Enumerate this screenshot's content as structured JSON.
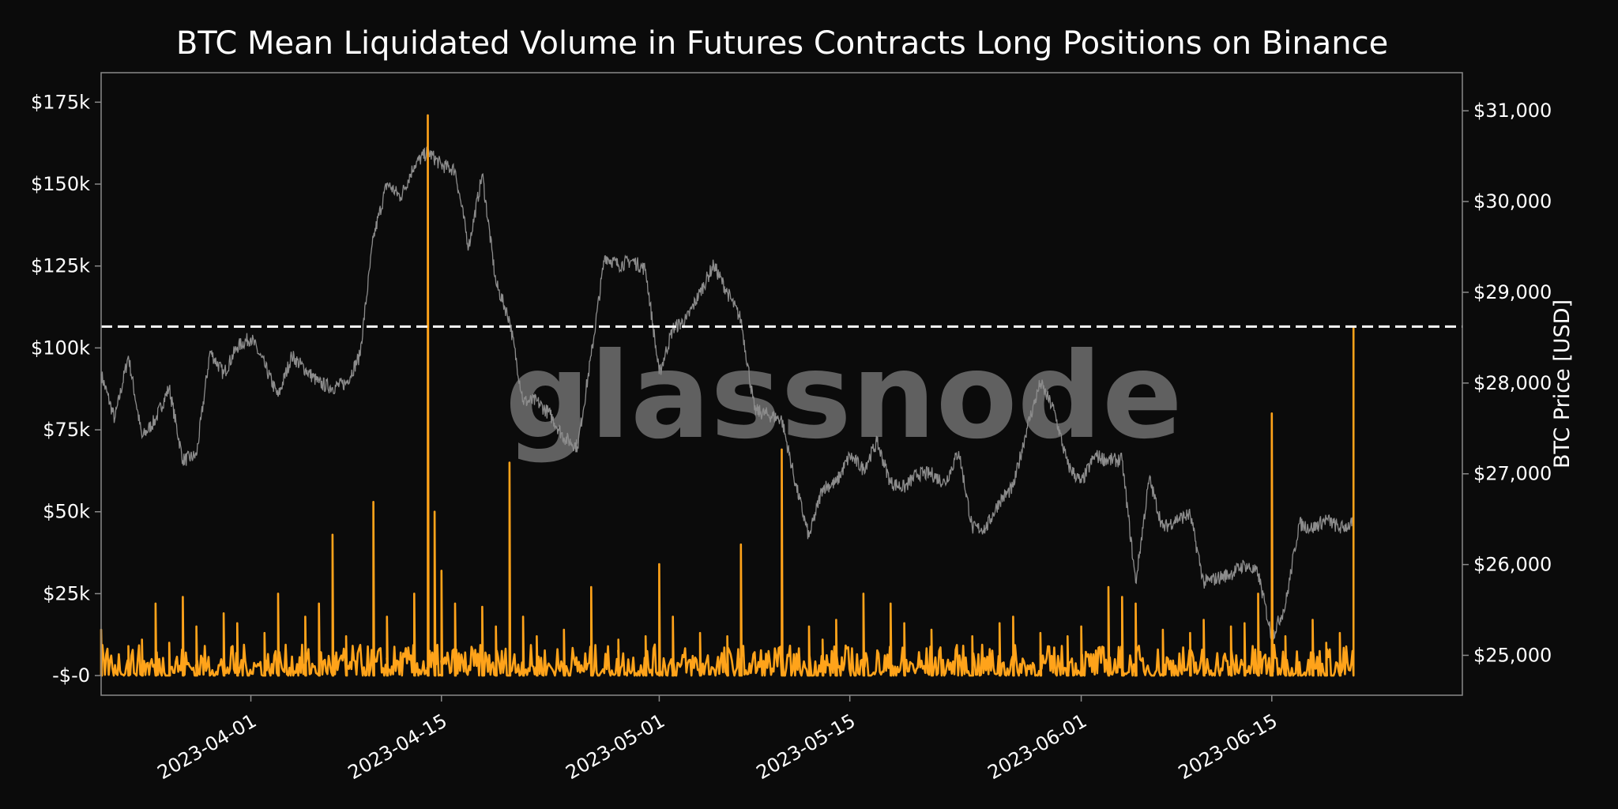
{
  "chart_data": {
    "type": "line",
    "title": "BTC Mean Liquidated Volume in Futures Contracts Long Positions on Binance",
    "xlabel": "",
    "ylabel_left": "",
    "ylabel_right": "BTC Price [USD]",
    "watermark": "glassnode",
    "x_range": [
      "2023-03-21",
      "2023-06-29"
    ],
    "x_ticks": [
      "2023-04-01",
      "2023-04-15",
      "2023-05-01",
      "2023-05-15",
      "2023-06-01",
      "2023-06-15"
    ],
    "y_left": {
      "range": [
        -6000,
        184000
      ],
      "ticks": [
        0,
        25000,
        50000,
        75000,
        100000,
        125000,
        150000,
        175000
      ],
      "tick_labels": [
        "-$-0",
        "$25k",
        "$50k",
        "$75k",
        "$100k",
        "$125k",
        "$150k",
        "$175k"
      ]
    },
    "y_right": {
      "range": [
        24560,
        31420
      ],
      "ticks": [
        25000,
        26000,
        27000,
        28000,
        29000,
        30000,
        31000
      ],
      "tick_labels": [
        "$25,000",
        "$26,000",
        "$27,000",
        "$28,000",
        "$29,000",
        "$30,000",
        "$31,000"
      ]
    },
    "reference_line": {
      "axis": "left",
      "value": 106500,
      "style": "dashed",
      "color": "#ffffff"
    },
    "colors": {
      "volume": "#ffa31a",
      "price": "#8c8c8c",
      "background": "#0b0b0b",
      "axes": "#8a8a8a",
      "text": "#ffffff",
      "watermark": "#6a6a6a"
    },
    "grid": false,
    "series": [
      {
        "axis": "left",
        "color": "#ffa31a",
        "points": [
          [
            "2023-03-21",
            14000
          ],
          [
            "2023-03-23",
            9000
          ],
          [
            "2023-03-24",
            11000
          ],
          [
            "2023-03-25",
            22000
          ],
          [
            "2023-03-26",
            10000
          ],
          [
            "2023-03-27",
            24000
          ],
          [
            "2023-03-28",
            15000
          ],
          [
            "2023-03-30",
            19000
          ],
          [
            "2023-03-31",
            16000
          ],
          [
            "2023-04-02",
            13000
          ],
          [
            "2023-04-03",
            25000
          ],
          [
            "2023-04-05",
            18000
          ],
          [
            "2023-04-06",
            22000
          ],
          [
            "2023-04-07",
            43000
          ],
          [
            "2023-04-08",
            12000
          ],
          [
            "2023-04-10",
            53000
          ],
          [
            "2023-04-11",
            18000
          ],
          [
            "2023-04-13",
            25000
          ],
          [
            "2023-04-14",
            171000
          ],
          [
            "2023-04-14T12:00",
            50000
          ],
          [
            "2023-04-15",
            32000
          ],
          [
            "2023-04-16",
            22000
          ],
          [
            "2023-04-18",
            21000
          ],
          [
            "2023-04-19",
            15000
          ],
          [
            "2023-04-20",
            65000
          ],
          [
            "2023-04-21",
            18000
          ],
          [
            "2023-04-22",
            12000
          ],
          [
            "2023-04-24",
            14000
          ],
          [
            "2023-04-26",
            27000
          ],
          [
            "2023-04-28",
            11000
          ],
          [
            "2023-04-30",
            12000
          ],
          [
            "2023-05-01",
            34000
          ],
          [
            "2023-05-02",
            18000
          ],
          [
            "2023-05-04",
            13000
          ],
          [
            "2023-05-06",
            12000
          ],
          [
            "2023-05-07",
            40000
          ],
          [
            "2023-05-10",
            69000
          ],
          [
            "2023-05-12",
            15000
          ],
          [
            "2023-05-13",
            11000
          ],
          [
            "2023-05-14",
            17000
          ],
          [
            "2023-05-16",
            25000
          ],
          [
            "2023-05-18",
            22000
          ],
          [
            "2023-05-19",
            16000
          ],
          [
            "2023-05-21",
            14000
          ],
          [
            "2023-05-24",
            12000
          ],
          [
            "2023-05-26",
            16000
          ],
          [
            "2023-05-27",
            18000
          ],
          [
            "2023-05-29",
            13000
          ],
          [
            "2023-05-31",
            12000
          ],
          [
            "2023-06-01",
            15000
          ],
          [
            "2023-06-03",
            27000
          ],
          [
            "2023-06-04",
            24000
          ],
          [
            "2023-06-05",
            22000
          ],
          [
            "2023-06-07",
            14000
          ],
          [
            "2023-06-09",
            13000
          ],
          [
            "2023-06-10",
            17000
          ],
          [
            "2023-06-12",
            15000
          ],
          [
            "2023-06-13",
            16000
          ],
          [
            "2023-06-14",
            25000
          ],
          [
            "2023-06-15",
            80000
          ],
          [
            "2023-06-16",
            12000
          ],
          [
            "2023-06-18",
            17000
          ],
          [
            "2023-06-19",
            10000
          ],
          [
            "2023-06-20",
            13000
          ],
          [
            "2023-06-21",
            106500
          ]
        ]
      },
      {
        "axis": "right",
        "color": "#8c8c8c",
        "points": [
          [
            "2023-03-21",
            28100
          ],
          [
            "2023-03-22",
            27600
          ],
          [
            "2023-03-23",
            28300
          ],
          [
            "2023-03-24",
            27400
          ],
          [
            "2023-03-25",
            27600
          ],
          [
            "2023-03-26",
            27950
          ],
          [
            "2023-03-27",
            27150
          ],
          [
            "2023-03-28",
            27200
          ],
          [
            "2023-03-29",
            28350
          ],
          [
            "2023-03-30",
            28100
          ],
          [
            "2023-03-31",
            28400
          ],
          [
            "2023-04-01",
            28500
          ],
          [
            "2023-04-02",
            28200
          ],
          [
            "2023-04-03",
            27850
          ],
          [
            "2023-04-04",
            28300
          ],
          [
            "2023-04-05",
            28150
          ],
          [
            "2023-04-06",
            28000
          ],
          [
            "2023-04-07",
            27950
          ],
          [
            "2023-04-08",
            28000
          ],
          [
            "2023-04-09",
            28300
          ],
          [
            "2023-04-10",
            29600
          ],
          [
            "2023-04-11",
            30200
          ],
          [
            "2023-04-12",
            30050
          ],
          [
            "2023-04-13",
            30400
          ],
          [
            "2023-04-14",
            30550
          ],
          [
            "2023-04-15",
            30400
          ],
          [
            "2023-04-16",
            30350
          ],
          [
            "2023-04-17",
            29500
          ],
          [
            "2023-04-18",
            30300
          ],
          [
            "2023-04-19",
            29100
          ],
          [
            "2023-04-20",
            28700
          ],
          [
            "2023-04-21",
            27800
          ],
          [
            "2023-04-22",
            27800
          ],
          [
            "2023-04-23",
            27650
          ],
          [
            "2023-04-24",
            27400
          ],
          [
            "2023-04-25",
            27300
          ],
          [
            "2023-04-26",
            28300
          ],
          [
            "2023-04-27",
            29400
          ],
          [
            "2023-04-28",
            29300
          ],
          [
            "2023-04-29",
            29350
          ],
          [
            "2023-04-30",
            29250
          ],
          [
            "2023-05-01",
            28100
          ],
          [
            "2023-05-02",
            28600
          ],
          [
            "2023-05-03",
            28700
          ],
          [
            "2023-05-04",
            29000
          ],
          [
            "2023-05-05",
            29300
          ],
          [
            "2023-05-06",
            29000
          ],
          [
            "2023-05-07",
            28700
          ],
          [
            "2023-05-08",
            27700
          ],
          [
            "2023-05-09",
            27650
          ],
          [
            "2023-05-10",
            27600
          ],
          [
            "2023-05-11",
            26900
          ],
          [
            "2023-05-12",
            26300
          ],
          [
            "2023-05-13",
            26850
          ],
          [
            "2023-05-14",
            26900
          ],
          [
            "2023-05-15",
            27200
          ],
          [
            "2023-05-16",
            27050
          ],
          [
            "2023-05-17",
            27350
          ],
          [
            "2023-05-18",
            26900
          ],
          [
            "2023-05-19",
            26850
          ],
          [
            "2023-05-20",
            27000
          ],
          [
            "2023-05-21",
            27000
          ],
          [
            "2023-05-22",
            26900
          ],
          [
            "2023-05-23",
            27250
          ],
          [
            "2023-05-24",
            26400
          ],
          [
            "2023-05-25",
            26400
          ],
          [
            "2023-05-26",
            26700
          ],
          [
            "2023-05-27",
            26850
          ],
          [
            "2023-05-28",
            27500
          ],
          [
            "2023-05-29",
            28000
          ],
          [
            "2023-05-30",
            27700
          ],
          [
            "2023-05-31",
            27100
          ],
          [
            "2023-06-01",
            26900
          ],
          [
            "2023-06-02",
            27200
          ],
          [
            "2023-06-03",
            27150
          ],
          [
            "2023-06-04",
            27150
          ],
          [
            "2023-06-05",
            25800
          ],
          [
            "2023-06-06",
            26950
          ],
          [
            "2023-06-07",
            26400
          ],
          [
            "2023-06-08",
            26500
          ],
          [
            "2023-06-09",
            26550
          ],
          [
            "2023-06-10",
            25800
          ],
          [
            "2023-06-11",
            25850
          ],
          [
            "2023-06-12",
            25900
          ],
          [
            "2023-06-13",
            26000
          ],
          [
            "2023-06-14",
            25900
          ],
          [
            "2023-06-15",
            25200
          ],
          [
            "2023-06-16",
            25550
          ],
          [
            "2023-06-17",
            26450
          ],
          [
            "2023-06-18",
            26400
          ],
          [
            "2023-06-19",
            26500
          ],
          [
            "2023-06-20",
            26400
          ],
          [
            "2023-06-21",
            26450
          ]
        ]
      }
    ]
  }
}
